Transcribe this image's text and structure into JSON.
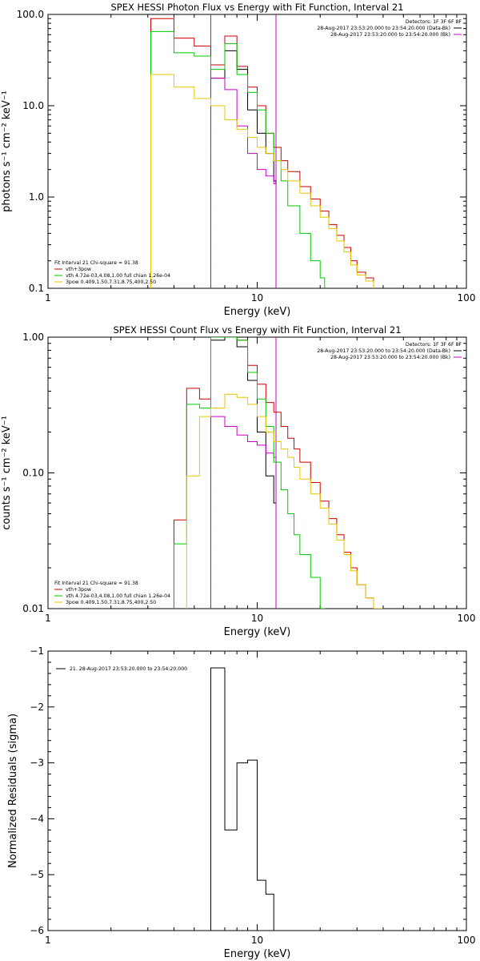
{
  "chart_data": [
    {
      "type": "line",
      "title": "SPEX HESSI Photon Flux vs Energy with Fit Function, Interval 21",
      "xlabel": "Energy (keV)",
      "ylabel": "photons s⁻¹ cm⁻² keV⁻¹",
      "x_scale": "log",
      "y_scale": "log",
      "xlim": [
        1,
        100
      ],
      "ylim": [
        0.1,
        100
      ],
      "x_ticks": [
        {
          "v": 1,
          "label": "1"
        },
        {
          "v": 10,
          "label": "10"
        },
        {
          "v": 100,
          "label": "100"
        }
      ],
      "y_ticks": [
        {
          "v": 0.1,
          "label": "0.1"
        },
        {
          "v": 1,
          "label": "1.0"
        },
        {
          "v": 10,
          "label": "10.0"
        },
        {
          "v": 100,
          "label": "100.0"
        }
      ],
      "vlines": [
        {
          "x": 6,
          "color": "#00b400",
          "style": "dot"
        },
        {
          "x": 6,
          "color": "#cc00cc",
          "style": "solid"
        },
        {
          "x": 12.3,
          "color": "#000000",
          "style": "dash",
          "top": true
        },
        {
          "x": 12.3,
          "color": "#cc00cc",
          "style": "solid"
        }
      ],
      "legend_topright": {
        "title": "Detectors: 1F 3F 6F 8F",
        "entries": [
          {
            "text": "28-Aug-2017 23:53:20.000 to 23:54:20.000 (Data-Bk)",
            "color": "#000000"
          },
          {
            "text": "28-Aug-2017 23:53:20.000 to 23:54:20.000 (Bk)",
            "color": "#cc00cc"
          }
        ]
      },
      "legend_bottomleft": {
        "title": "Fit Interval 21    Chi-square = 91.38",
        "entries": [
          {
            "text": "vth+3pow",
            "color": "#cc0000"
          },
          {
            "text": "vth 4.72e-03,4.08,1.00  full chian 1.26e-04",
            "color": "#00c800"
          },
          {
            "text": "3pow 0.409,1.50,7.31,8.75,400,2.50",
            "color": "#e6c800"
          }
        ]
      },
      "series": [
        {
          "color": "#cc0000",
          "edges": [
            3.1,
            4,
            5,
            6,
            7,
            8,
            9,
            10,
            11,
            12,
            13,
            14,
            16,
            18,
            20,
            22,
            24,
            26,
            28,
            30,
            33,
            36
          ],
          "values": [
            90,
            55,
            45,
            28,
            58,
            27,
            16,
            10,
            5,
            3.5,
            2.5,
            1.9,
            1.3,
            0.95,
            0.7,
            0.5,
            0.38,
            0.28,
            0.2,
            0.15,
            0.13
          ]
        },
        {
          "color": "#000000",
          "edges": [
            6,
            7,
            8,
            9,
            10,
            11,
            12,
            12.3
          ],
          "values": [
            20,
            40,
            25,
            9,
            5,
            3,
            1.5
          ]
        },
        {
          "color": "#cc00cc",
          "edges": [
            6,
            7,
            8,
            9,
            10,
            11,
            12,
            12.3
          ],
          "values": [
            20,
            15,
            6,
            3,
            2,
            1.7,
            1.4
          ]
        },
        {
          "color": "#00c800",
          "edges": [
            3.1,
            4,
            5,
            6,
            7,
            8,
            9,
            10,
            11,
            12,
            13,
            14,
            16,
            18,
            20,
            21
          ],
          "values": [
            65,
            38,
            35,
            25,
            48,
            22,
            14,
            9,
            5,
            2.5,
            1.5,
            0.8,
            0.4,
            0.2,
            0.13
          ]
        },
        {
          "color": "#e6c800",
          "edges": [
            3.1,
            4,
            5,
            6,
            7,
            8,
            9,
            10,
            11,
            12,
            13,
            14,
            16,
            18,
            20,
            22,
            24,
            26,
            28,
            30,
            33,
            36
          ],
          "values": [
            22,
            16,
            12,
            10,
            7,
            5.5,
            4.5,
            3.5,
            3,
            2.5,
            2,
            1.5,
            1.1,
            0.8,
            0.6,
            0.45,
            0.33,
            0.25,
            0.18,
            0.14,
            0.12
          ]
        }
      ]
    },
    {
      "type": "line",
      "title": "SPEX HESSI Count Flux vs Energy with Fit Function, Interval 21",
      "xlabel": "Energy (keV)",
      "ylabel": "counts s⁻¹ cm⁻² keV⁻¹",
      "x_scale": "log",
      "y_scale": "log",
      "xlim": [
        1,
        100
      ],
      "ylim": [
        0.01,
        1
      ],
      "x_ticks": [
        {
          "v": 1,
          "label": "1"
        },
        {
          "v": 10,
          "label": "10"
        },
        {
          "v": 100,
          "label": "100"
        }
      ],
      "y_ticks": [
        {
          "v": 0.01,
          "label": "0.01"
        },
        {
          "v": 0.1,
          "label": "0.10"
        },
        {
          "v": 1,
          "label": "1.00"
        }
      ],
      "vlines": [
        {
          "x": 6,
          "color": "#00b400",
          "style": "dot"
        },
        {
          "x": 6,
          "color": "#cc00cc",
          "style": "solid"
        },
        {
          "x": 12.3,
          "color": "#000000",
          "style": "dash",
          "top": true
        },
        {
          "x": 12.3,
          "color": "#cc00cc",
          "style": "solid"
        }
      ],
      "legend_topright": {
        "title": "Detectors: 1F 3F 6F 8F",
        "entries": [
          {
            "text": "28-Aug-2017 23:53:20.000 to 23:54:20.000 (Data-Bk)",
            "color": "#000000"
          },
          {
            "text": "28-Aug-2017 23:53:20.000 to 23:54:20.000 (Bk)",
            "color": "#cc00cc"
          }
        ]
      },
      "legend_bottomleft": {
        "title": "Fit Interval 21    Chi-square = 91.38",
        "entries": [
          {
            "text": "vth+3pow",
            "color": "#cc0000"
          },
          {
            "text": "vth 4.72e-03,4.08,1.00  full chian 1.26e-04",
            "color": "#00c800"
          },
          {
            "text": "3pow 0.409,1.50,7.31,8.75,400,2.50",
            "color": "#e6c800"
          }
        ]
      },
      "series": [
        {
          "color": "#cc0000",
          "edges": [
            4,
            4.6,
            5.3,
            6,
            7,
            8,
            9,
            10,
            11,
            12,
            13,
            14,
            15,
            16,
            18,
            20,
            22,
            24,
            26,
            28,
            30,
            33,
            36,
            40
          ],
          "values": [
            0.045,
            0.42,
            0.35,
            1.1,
            1.2,
            0.95,
            0.62,
            0.45,
            0.33,
            0.28,
            0.22,
            0.18,
            0.15,
            0.12,
            0.085,
            0.062,
            0.046,
            0.035,
            0.026,
            0.02,
            0.015,
            0.012,
            0.01
          ]
        },
        {
          "color": "#000000",
          "edges": [
            6,
            7,
            8,
            9,
            10,
            11,
            12,
            12.3
          ],
          "values": [
            0.95,
            1.0,
            0.85,
            0.48,
            0.2,
            0.095,
            0.06
          ]
        },
        {
          "color": "#cc00cc",
          "edges": [
            6,
            7,
            8,
            9,
            10,
            11,
            12,
            12.3
          ],
          "values": [
            0.26,
            0.22,
            0.19,
            0.17,
            0.16,
            0.14,
            0.13
          ]
        },
        {
          "color": "#00c800",
          "edges": [
            4,
            4.6,
            5.3,
            6,
            7,
            8,
            9,
            10,
            11,
            12,
            13,
            14,
            15,
            16,
            18,
            20,
            21
          ],
          "values": [
            0.03,
            0.32,
            0.3,
            1.0,
            1.0,
            0.95,
            0.55,
            0.35,
            0.22,
            0.12,
            0.075,
            0.05,
            0.035,
            0.025,
            0.017,
            0.01
          ]
        },
        {
          "color": "#e6c800",
          "edges": [
            4.6,
            5.3,
            6,
            7,
            8,
            9,
            10,
            11,
            12,
            13,
            14,
            15,
            16,
            18,
            20,
            22,
            24,
            26,
            28,
            30,
            33,
            36,
            40
          ],
          "values": [
            0.095,
            0.26,
            0.3,
            0.38,
            0.36,
            0.32,
            0.26,
            0.2,
            0.17,
            0.15,
            0.13,
            0.11,
            0.09,
            0.07,
            0.055,
            0.042,
            0.032,
            0.025,
            0.019,
            0.015,
            0.012,
            0.01
          ]
        }
      ]
    },
    {
      "type": "line",
      "title": "",
      "xlabel": "Energy (keV)",
      "ylabel": "Normalized Residuals (sigma)",
      "x_scale": "log",
      "y_scale": "linear",
      "xlim": [
        1,
        100
      ],
      "ylim": [
        -6,
        -1
      ],
      "x_ticks": [
        {
          "v": 1,
          "label": "1"
        },
        {
          "v": 10,
          "label": "10"
        },
        {
          "v": 100,
          "label": "100"
        }
      ],
      "y_ticks": [
        {
          "v": -6,
          "label": "−6"
        },
        {
          "v": -5,
          "label": "−5"
        },
        {
          "v": -4,
          "label": "−4"
        },
        {
          "v": -3,
          "label": "−3"
        },
        {
          "v": -2,
          "label": "−2"
        },
        {
          "v": -1,
          "label": "−1"
        }
      ],
      "vlines": [],
      "legend_topleft": {
        "entries": [
          {
            "text": "21. 28-Aug-2017 23:53:20.000 to 23:54:20.000",
            "color": "#000000"
          }
        ]
      },
      "series": [
        {
          "color": "#000000",
          "edges": [
            6,
            7,
            8,
            9,
            10,
            11,
            12,
            12.3
          ],
          "values": [
            -1.3,
            -4.2,
            -3.0,
            -2.95,
            -5.1,
            -5.35,
            -6.0
          ],
          "drop_to_bottom": true
        }
      ]
    }
  ]
}
